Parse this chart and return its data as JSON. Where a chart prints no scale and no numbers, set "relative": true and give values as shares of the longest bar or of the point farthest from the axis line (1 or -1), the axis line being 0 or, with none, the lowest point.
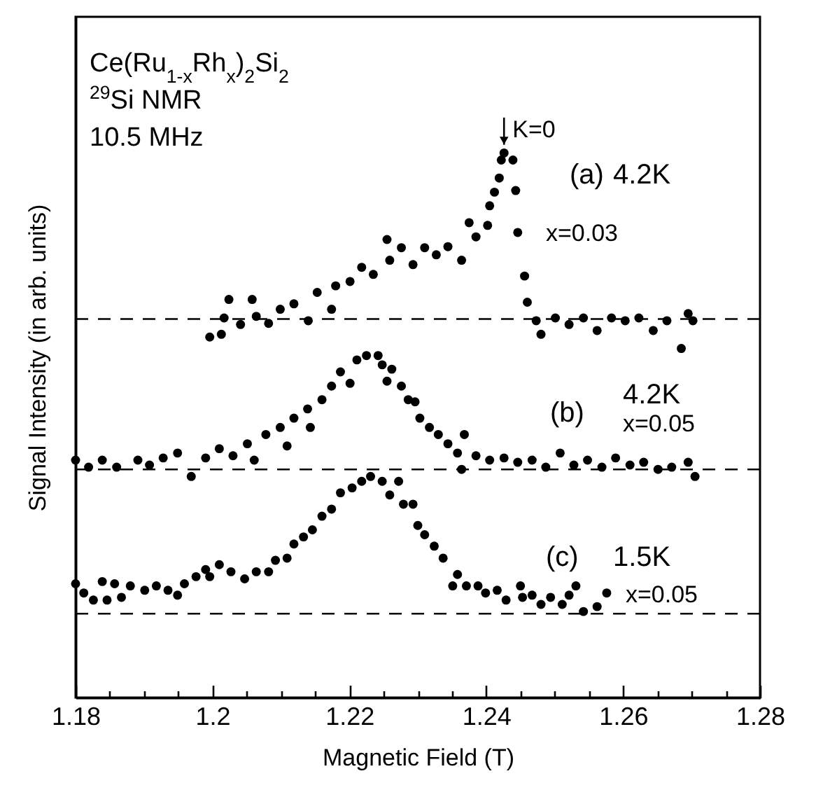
{
  "chart_data": {
    "type": "scatter",
    "relative": true,
    "marker": "circle",
    "xlabel": "Magnetic Field (T)",
    "ylabel": "Signal Intensity (in arb. units)",
    "xlim": [
      1.18,
      1.28
    ],
    "xticks": [
      1.18,
      {
        "value": 1.185,
        "label": null
      },
      {
        "value": 1.19,
        "label": null
      },
      {
        "value": 1.195,
        "label": null
      },
      1.2,
      {
        "value": 1.205,
        "label": null
      },
      {
        "value": 1.21,
        "label": null
      },
      {
        "value": 1.215,
        "label": null
      },
      1.22,
      {
        "value": 1.225,
        "label": null
      },
      {
        "value": 1.23,
        "label": null
      },
      {
        "value": 1.235,
        "label": null
      },
      1.24,
      {
        "value": 1.245,
        "label": null
      },
      {
        "value": 1.25,
        "label": null
      },
      {
        "value": 1.255,
        "label": null
      },
      1.26,
      {
        "value": 1.265,
        "label": null
      },
      {
        "value": 1.27,
        "label": null
      },
      {
        "value": 1.275,
        "label": null
      },
      1.28
    ],
    "series": [
      {
        "color": "#000000",
        "x": [
          1.1996,
          1.2013,
          1.2017,
          1.2024,
          1.2041,
          1.2058,
          1.2064,
          1.2082,
          1.2099,
          1.2119,
          1.214,
          1.2153,
          1.2174,
          1.218,
          1.2201,
          1.2218,
          1.2235,
          1.2255,
          1.2259,
          1.2276,
          1.2293,
          1.231,
          1.2327,
          1.2344,
          1.2364,
          1.2375,
          1.2385,
          1.2402,
          1.2405,
          1.2412,
          1.2419,
          1.2422,
          1.2426,
          1.2439,
          1.2443,
          1.2446,
          1.2456,
          1.246,
          1.2473,
          1.248,
          1.2501,
          1.2521,
          1.2542,
          1.2562,
          1.2583,
          1.2603,
          1.2623,
          1.2644,
          1.2664,
          1.2685,
          1.2695,
          1.2702
        ],
        "values": [
          0.662,
          0.667,
          0.697,
          0.731,
          0.685,
          0.731,
          0.7,
          0.687,
          0.713,
          0.723,
          0.692,
          0.744,
          0.713,
          0.756,
          0.764,
          0.79,
          0.777,
          0.841,
          0.803,
          0.826,
          0.795,
          0.826,
          0.813,
          0.828,
          0.803,
          0.872,
          0.846,
          0.867,
          0.903,
          0.928,
          0.954,
          0.987,
          1.0,
          0.987,
          0.931,
          0.854,
          0.774,
          0.726,
          0.692,
          0.667,
          0.697,
          0.685,
          0.697,
          0.674,
          0.697,
          0.692,
          0.697,
          0.674,
          0.692,
          0.641,
          0.705,
          0.692
        ]
      },
      {
        "color": "#000000",
        "x": [
          1.18,
          1.1819,
          1.1839,
          1.186,
          1.1891,
          1.1908,
          1.1928,
          1.1949,
          1.1969,
          1.199,
          1.201,
          1.203,
          1.2051,
          1.2061,
          1.2078,
          1.2099,
          1.2109,
          1.2119,
          1.2139,
          1.2143,
          1.216,
          1.2174,
          1.2187,
          1.2201,
          1.2211,
          1.2225,
          1.2242,
          1.2248,
          1.2262,
          1.2255,
          1.2276,
          1.2286,
          1.2296,
          1.2303,
          1.2317,
          1.233,
          1.2344,
          1.2358,
          1.2368,
          1.2364,
          1.2385,
          1.2405,
          1.2426,
          1.2446,
          1.2467,
          1.2487,
          1.2508,
          1.2528,
          1.2548,
          1.2569,
          1.2589,
          1.261,
          1.263,
          1.2651,
          1.2671,
          1.2695,
          1.2705
        ],
        "values": [
          0.436,
          0.423,
          0.436,
          0.423,
          0.436,
          0.427,
          0.44,
          0.449,
          0.406,
          0.44,
          0.457,
          0.444,
          0.466,
          0.436,
          0.483,
          0.496,
          0.462,
          0.513,
          0.53,
          0.496,
          0.547,
          0.572,
          0.598,
          0.577,
          0.62,
          0.628,
          0.628,
          0.611,
          0.603,
          0.581,
          0.572,
          0.547,
          0.543,
          0.513,
          0.496,
          0.483,
          0.466,
          0.449,
          0.483,
          0.419,
          0.444,
          0.436,
          0.44,
          0.432,
          0.436,
          0.423,
          0.449,
          0.427,
          0.436,
          0.423,
          0.44,
          0.427,
          0.432,
          0.419,
          0.423,
          0.432,
          0.406
        ]
      },
      {
        "color": "#000000",
        "x": [
          1.18,
          1.1812,
          1.1826,
          1.1839,
          1.1846,
          1.1857,
          1.1867,
          1.188,
          1.1901,
          1.1918,
          1.1935,
          1.1949,
          1.1959,
          1.1976,
          1.199,
          1.1996,
          1.201,
          1.2027,
          1.2047,
          1.2064,
          1.2082,
          1.2092,
          1.2109,
          1.2119,
          1.2133,
          1.2146,
          1.216,
          1.2174,
          1.2187,
          1.2204,
          1.2218,
          1.2231,
          1.2248,
          1.2259,
          1.2272,
          1.2279,
          1.2293,
          1.23,
          1.231,
          1.2324,
          1.2337,
          1.2358,
          1.2351,
          1.2371,
          1.2388,
          1.2399,
          1.2416,
          1.2429,
          1.245,
          1.2453,
          1.2467,
          1.248,
          1.2494,
          1.2511,
          1.2521,
          1.2531,
          1.2542,
          1.2562,
          1.2576
        ],
        "values": [
          0.209,
          0.192,
          0.179,
          0.213,
          0.179,
          0.209,
          0.184,
          0.205,
          0.197,
          0.205,
          0.197,
          0.188,
          0.209,
          0.222,
          0.235,
          0.222,
          0.244,
          0.231,
          0.218,
          0.231,
          0.231,
          0.252,
          0.256,
          0.282,
          0.295,
          0.308,
          0.333,
          0.346,
          0.376,
          0.385,
          0.397,
          0.406,
          0.397,
          0.372,
          0.397,
          0.355,
          0.355,
          0.316,
          0.299,
          0.278,
          0.256,
          0.226,
          0.205,
          0.205,
          0.205,
          0.192,
          0.197,
          0.179,
          0.205,
          0.184,
          0.188,
          0.171,
          0.184,
          0.171,
          0.188,
          0.205,
          0.158,
          0.167,
          0.192
        ]
      }
    ],
    "ref_lines": [
      {
        "axis": "y",
        "value": 0.695,
        "color": "#000000",
        "line_style": "dashed"
      },
      {
        "axis": "y",
        "value": 0.419,
        "color": "#000000",
        "line_style": "dashed"
      },
      {
        "axis": "y",
        "value": 0.154,
        "color": "#000000",
        "line_style": "dashed"
      }
    ],
    "annotations": [
      "Ce(Ru$_{1-x}$Rh$_{x}$)$_{2}$Si$_{2}$",
      "$^{29}$Si NMR",
      "10.5 MHz",
      {
        "text": "K=0",
        "x": 1.2426,
        "y": 1.0
      },
      "(a)",
      "4.2K",
      "x=0.03",
      "(b)",
      "4.2K",
      "x=0.05",
      "(c)",
      "1.5K",
      "x=0.05"
    ]
  }
}
